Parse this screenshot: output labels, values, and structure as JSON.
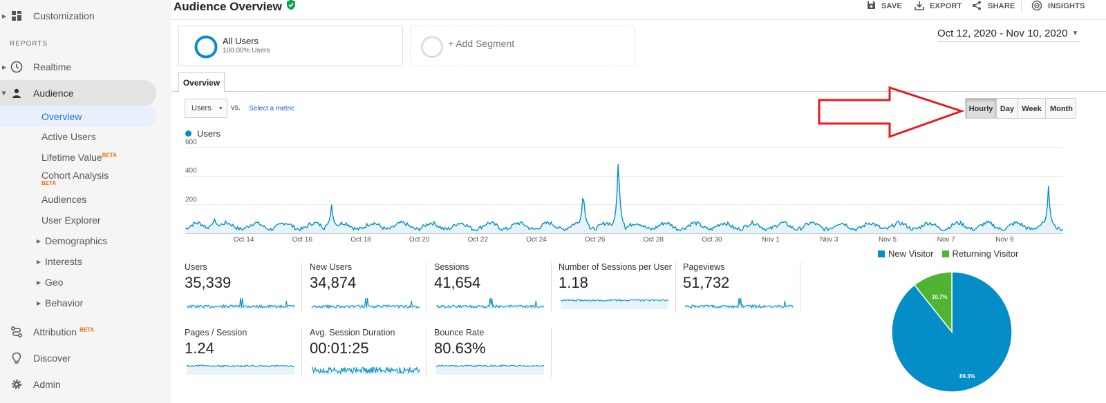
{
  "sidebar": {
    "customization": "Customization",
    "reports_heading": "REPORTS",
    "realtime": "Realtime",
    "audience": "Audience",
    "sub_items": {
      "overview": "Overview",
      "active_users": "Active Users",
      "lifetime_value": "Lifetime Value",
      "cohort_analysis": "Cohort Analysis",
      "audiences": "Audiences",
      "user_explorer": "User Explorer",
      "demographics": "Demographics",
      "interests": "Interests",
      "geo": "Geo",
      "behavior": "Behavior"
    },
    "beta": "BETA",
    "attribution": "Attribution",
    "discover": "Discover",
    "admin": "Admin"
  },
  "header": {
    "title": "Audience Overview",
    "save": "SAVE",
    "export": "EXPORT",
    "share": "SHARE",
    "insights": "INSIGHTS"
  },
  "segments": {
    "all_users_name": "All Users",
    "all_users_pct": "100.00% Users",
    "add_segment": "+ Add Segment"
  },
  "date_range": "Oct 12, 2020 - Nov 10, 2020",
  "tabs": {
    "overview": "Overview"
  },
  "metric_select": {
    "value": "Users",
    "vs": "vs.",
    "select_metric": "Select a metric"
  },
  "time_buttons": {
    "hourly": "Hourly",
    "day": "Day",
    "week": "Week",
    "month": "Month",
    "active": "Hourly"
  },
  "colors": {
    "series": "#058dc7",
    "fill": "#e6f4fa",
    "returning": "#50b432",
    "arrow": "#e8191b"
  },
  "chart_data": [
    {
      "type": "area",
      "legend": "Users",
      "ylim": [
        0,
        600
      ],
      "y_ticks": [
        "600",
        "400",
        "200"
      ],
      "x_tick_labels": [
        "Oct 14",
        "Oct 16",
        "Oct 18",
        "Oct 20",
        "Oct 22",
        "Oct 24",
        "Oct 26",
        "Oct 28",
        "Oct 30",
        "Nov 1",
        "Nov 3",
        "Nov 5",
        "Nov 7",
        "Nov 9"
      ],
      "x_range_days": [
        0,
        30
      ],
      "baseline": 50,
      "peaks": [
        {
          "day": 1.0,
          "value": 100
        },
        {
          "day": 5.0,
          "value": 200
        },
        {
          "day": 13.6,
          "value": 310
        },
        {
          "day": 14.8,
          "value": 550
        },
        {
          "day": 29.5,
          "value": 330
        }
      ]
    },
    {
      "type": "pie",
      "legend": [
        "New Visitor",
        "Returning Visitor"
      ],
      "labels": [
        "89.3%",
        "10.7%"
      ],
      "values": [
        89.3,
        10.7
      ]
    }
  ],
  "metrics": [
    {
      "label": "Users",
      "value": "35,339"
    },
    {
      "label": "New Users",
      "value": "34,874"
    },
    {
      "label": "Sessions",
      "value": "41,654"
    },
    {
      "label": "Number of Sessions per User",
      "value": "1.18"
    },
    {
      "label": "Pageviews",
      "value": "51,732"
    },
    {
      "label": "Pages / Session",
      "value": "1.24"
    },
    {
      "label": "Avg. Session Duration",
      "value": "00:01:25"
    },
    {
      "label": "Bounce Rate",
      "value": "80.63%"
    }
  ]
}
